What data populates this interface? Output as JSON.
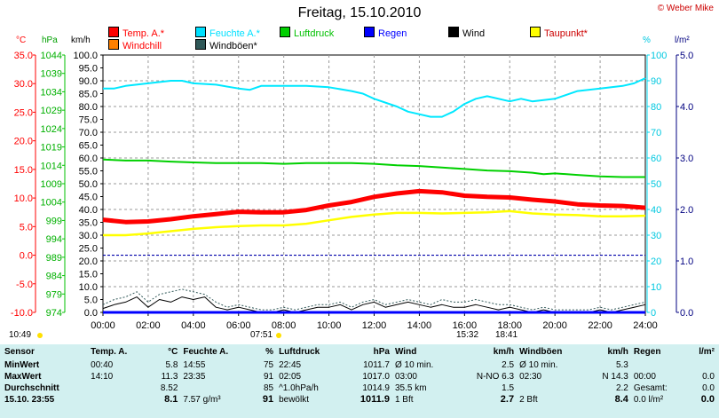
{
  "title": "Freitag, 15.10.2010",
  "copyright": "© Weber Mike",
  "legend": [
    {
      "label": "Temp. A.*",
      "color": "#ff0000",
      "label_color": "#ff0000"
    },
    {
      "label": "Feuchte A.*",
      "color": "#00e0ff",
      "label_color": "#00e0ff"
    },
    {
      "label": "Luftdruck",
      "color": "#00d000",
      "label_color": "#00c000"
    },
    {
      "label": "Regen",
      "color": "#0000ff",
      "label_color": "#0000ff"
    },
    {
      "label": "Wind",
      "color": "#000000",
      "label_color": "#000000"
    },
    {
      "label": "Taupunkt*",
      "color": "#ffff00",
      "label_color": "#cc0000"
    },
    {
      "label": "Windchill",
      "color": "#ff8000",
      "label_color": "#ff0000"
    },
    {
      "label": "Windböen*",
      "color": "#305858",
      "label_color": "#000000"
    }
  ],
  "axis_titles": {
    "temp": "°C",
    "pressure": "hPa",
    "wind": "km/h",
    "humidity": "%",
    "rain": "l/m²"
  },
  "sun_times": {
    "sunrise_left": "10:49",
    "sunrise": "07:51",
    "noon": "15:32",
    "sunset": "18:41"
  },
  "chart_data": {
    "type": "line",
    "x_ticks": [
      "00:00",
      "02:00",
      "04:00",
      "06:00",
      "08:00",
      "10:00",
      "12:00",
      "14:00",
      "16:00",
      "18:00",
      "20:00",
      "22:00",
      "24:00"
    ],
    "xlim_hours": [
      0,
      24
    ],
    "axes": {
      "temp": {
        "label": "°C",
        "ticks": [
          "35.0",
          "30.0",
          "25.0",
          "20.0",
          "15.0",
          "10.0",
          "5.0",
          "0.0",
          "-5.0",
          "-10.0"
        ],
        "range": [
          -10,
          35
        ]
      },
      "pressure": {
        "label": "hPa",
        "ticks": [
          "1044",
          "1039",
          "1034",
          "1029",
          "1024",
          "1019",
          "1014",
          "1009",
          "1004",
          "999",
          "994",
          "989",
          "984",
          "979",
          "974"
        ],
        "range": [
          974,
          1044
        ]
      },
      "wind": {
        "label": "km/h",
        "ticks": [
          "100.0",
          "95.0",
          "90.0",
          "85.0",
          "80.0",
          "75.0",
          "70.0",
          "65.0",
          "60.0",
          "55.0",
          "50.0",
          "45.0",
          "40.0",
          "35.0",
          "30.0",
          "25.0",
          "20.0",
          "15.0",
          "10.0",
          "5.0",
          "0.0"
        ],
        "range": [
          0,
          100
        ]
      },
      "humidity": {
        "label": "%",
        "ticks": [
          "100",
          "90",
          "80",
          "70",
          "60",
          "50",
          "40",
          "30",
          "20",
          "10",
          "0"
        ],
        "range": [
          0,
          100
        ]
      },
      "rain": {
        "label": "l/m²",
        "ticks": [
          "5.0",
          "4.0",
          "3.0",
          "2.0",
          "1.0",
          "0.0"
        ],
        "range": [
          0,
          5
        ]
      }
    },
    "series": [
      {
        "name": "Feuchte A.*",
        "axis": "humidity",
        "color": "#00e8ff",
        "x": [
          0,
          0.5,
          1,
          2,
          3,
          3.5,
          4,
          5,
          6,
          6.5,
          7,
          8,
          9,
          10,
          11,
          11.5,
          12,
          13,
          13.5,
          14,
          14.5,
          15,
          15.5,
          16,
          16.5,
          17,
          18,
          18.5,
          19,
          20,
          21,
          22,
          23,
          23.5,
          24
        ],
        "y": [
          87,
          87,
          88,
          89,
          90,
          90,
          89,
          88.5,
          87,
          86.5,
          88,
          88,
          88,
          87.5,
          86,
          85,
          83,
          80,
          78,
          77,
          76,
          76,
          78,
          81,
          83,
          84,
          82,
          83,
          82,
          83,
          86,
          87,
          88,
          89,
          91
        ]
      },
      {
        "name": "Luftdruck",
        "axis": "pressure",
        "color": "#00d000",
        "x": [
          0,
          1,
          2,
          3,
          4,
          5,
          6,
          7,
          8,
          9,
          10,
          11,
          12,
          13,
          14,
          15,
          16,
          17,
          18,
          19,
          19.5,
          20,
          21,
          22,
          23,
          24
        ],
        "y": [
          1015.6,
          1015.3,
          1015.3,
          1015.0,
          1014.8,
          1014.6,
          1014.6,
          1014.6,
          1014.4,
          1014.6,
          1014.6,
          1014.6,
          1014.4,
          1014.0,
          1013.8,
          1013.4,
          1013.0,
          1012.6,
          1012.4,
          1012.0,
          1011.6,
          1011.8,
          1011.4,
          1011.0,
          1010.8,
          1010.8
        ]
      },
      {
        "name": "Temp. A.*",
        "axis": "temp",
        "color": "#ff0000",
        "x": [
          0,
          1,
          2,
          3,
          4,
          5,
          6,
          7,
          8,
          9,
          10,
          11,
          12,
          13,
          14,
          15,
          16,
          17,
          18,
          19,
          20,
          21,
          22,
          23,
          24
        ],
        "y": [
          6.2,
          5.8,
          5.9,
          6.3,
          6.8,
          7.2,
          7.6,
          7.5,
          7.5,
          7.9,
          8.7,
          9.3,
          10.2,
          10.8,
          11.2,
          11.0,
          10.4,
          10.2,
          10.1,
          9.7,
          9.4,
          8.9,
          8.7,
          8.6,
          8.3
        ]
      },
      {
        "name": "Taupunkt*",
        "axis": "temp",
        "color": "#ffff00",
        "x": [
          0,
          1,
          2,
          3,
          4,
          5,
          6,
          7,
          8,
          9,
          10,
          11,
          12,
          13,
          14,
          15,
          16,
          17,
          18,
          19,
          20,
          21,
          22,
          23,
          24
        ],
        "y": [
          3.5,
          3.5,
          3.8,
          4.2,
          4.6,
          4.9,
          5.1,
          5.2,
          5.2,
          5.5,
          6.1,
          6.7,
          7.1,
          7.4,
          7.4,
          7.3,
          7.4,
          7.5,
          7.7,
          7.3,
          7.1,
          7.0,
          6.8,
          6.8,
          6.9
        ]
      },
      {
        "name": "Wind",
        "axis": "wind",
        "color": "#000000",
        "x": [
          0,
          0.5,
          1,
          1.5,
          2,
          2.5,
          3,
          3.5,
          4,
          4.5,
          5,
          5.5,
          6,
          6.5,
          7,
          7.5,
          8,
          8.5,
          9,
          9.5,
          10,
          10.5,
          11,
          11.5,
          12,
          12.5,
          13,
          13.5,
          14,
          14.5,
          15,
          15.5,
          16,
          16.5,
          17,
          17.5,
          18,
          18.5,
          19,
          19.5,
          20,
          20.5,
          21,
          21.5,
          22,
          22.5,
          23,
          23.5,
          24
        ],
        "y": [
          1.5,
          3,
          4,
          6,
          2,
          5,
          4,
          6,
          5,
          6,
          2,
          1,
          2,
          1,
          0,
          0,
          1,
          0,
          1,
          2,
          2,
          3,
          1,
          3,
          4,
          2,
          3,
          4,
          3,
          2,
          3,
          2,
          2,
          3,
          2,
          1,
          2,
          1,
          0,
          1,
          0,
          0,
          0,
          0,
          1,
          0,
          1,
          2,
          3
        ]
      },
      {
        "name": "Windböen*",
        "axis": "wind",
        "color": "#305858",
        "x": [
          0,
          0.5,
          1,
          1.5,
          2,
          2.5,
          3,
          3.5,
          4,
          4.5,
          5,
          5.5,
          6,
          6.5,
          7,
          7.5,
          8,
          8.5,
          9,
          9.5,
          10,
          10.5,
          11,
          11.5,
          12,
          12.5,
          13,
          13.5,
          14,
          14.5,
          15,
          15.5,
          16,
          16.5,
          17,
          17.5,
          18,
          18.5,
          19,
          19.5,
          20,
          20.5,
          21,
          21.5,
          22,
          22.5,
          23,
          23.5,
          24
        ],
        "y": [
          3,
          5,
          6,
          8,
          4,
          7,
          8,
          9,
          8,
          7,
          4,
          2,
          3,
          2,
          1,
          1,
          2,
          1,
          2,
          3,
          3,
          4,
          2,
          4,
          5,
          3,
          4,
          5,
          4,
          3,
          5,
          4,
          4,
          5,
          4,
          3,
          3,
          2,
          1,
          2,
          1,
          1,
          1,
          1,
          2,
          1,
          2,
          3,
          4
        ]
      },
      {
        "name": "Regen",
        "axis": "rain",
        "color": "#0000ff",
        "x": [
          0,
          24
        ],
        "y": [
          0,
          0
        ]
      }
    ],
    "hline": {
      "axis": "temp",
      "value": 0,
      "color": "#0000aa"
    }
  },
  "stats": {
    "headers": [
      "Sensor",
      "Temp. A.",
      "°C",
      "Feuchte A.",
      "%",
      "Luftdruck",
      "hPa",
      "Wind",
      "km/h",
      "Windböen",
      "km/h",
      "Regen",
      "l/m²"
    ],
    "rows": [
      {
        "label": "MinWert",
        "c": [
          "00:40",
          "5.8",
          "14:55",
          "75",
          "22:45",
          "1011.7",
          "Ø 10 min.",
          "2.5",
          "Ø 10 min.",
          "5.3",
          "",
          ""
        ]
      },
      {
        "label": "MaxWert",
        "c": [
          "14:10",
          "11.3",
          "23:35",
          "91",
          "02:05",
          "1017.0",
          "03:00",
          "N-NO 6.3",
          "02:30",
          "N 14.3",
          "00:00",
          "0.0"
        ]
      },
      {
        "label": "Durchschnitt",
        "c": [
          "",
          "8.52",
          "",
          "85",
          "^1.0hPa/h",
          "1014.9",
          "35.5 km",
          "1.5",
          "",
          "2.2",
          "Gesamt:",
          "0.0"
        ]
      },
      {
        "label": "15.10. 23:55",
        "c": [
          "",
          "8.1",
          "7.57 g/m³",
          "91",
          "bewölkt",
          "1011.9",
          "1 Bft",
          "2.7",
          "2 Bft",
          "8.4",
          "0.0 l/m²",
          "0.0"
        ]
      }
    ]
  }
}
